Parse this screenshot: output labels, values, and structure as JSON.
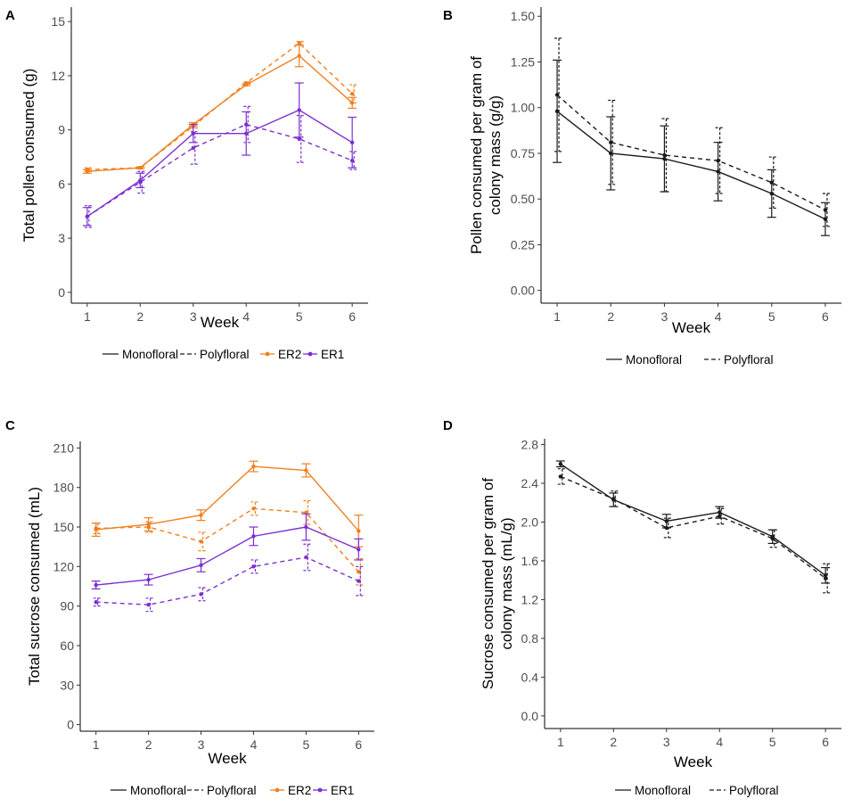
{
  "colors": {
    "ER2": "#f07f1e",
    "ER1": "#7b2fd0",
    "black": "#1a1a1a"
  },
  "chart_data": [
    {
      "panel": "A",
      "type": "line",
      "xlabel": "Week",
      "ylabel": "Total pollen consumed (g)",
      "x": [
        1,
        2,
        3,
        4,
        5,
        6
      ],
      "ylim": [
        -0.6,
        15.8
      ],
      "yticks": [
        0,
        3,
        6,
        9,
        12,
        15
      ],
      "yticklabels": [
        "0",
        "3",
        "6",
        "9",
        "12",
        "15"
      ],
      "grid": false,
      "series": [
        {
          "name": "ER2 Monofloral",
          "group": "ER2",
          "style": "solid",
          "values": [
            6.7,
            6.9,
            9.3,
            11.5,
            13.1,
            10.5
          ],
          "err": [
            0.1,
            0.05,
            0.1,
            0.05,
            0.6,
            0.3
          ]
        },
        {
          "name": "ER2 Polyfloral",
          "group": "ER2",
          "style": "dashed",
          "values": [
            6.8,
            6.9,
            9.2,
            11.6,
            13.8,
            11.0
          ],
          "err": [
            0.1,
            0.05,
            0.1,
            0.05,
            0.1,
            0.5
          ]
        },
        {
          "name": "ER1 Monofloral",
          "group": "ER1",
          "style": "solid",
          "values": [
            4.2,
            6.2,
            8.8,
            8.8,
            10.1,
            8.3
          ],
          "err": [
            0.5,
            0.4,
            0.5,
            1.2,
            1.5,
            1.4
          ]
        },
        {
          "name": "ER1 Polyfloral",
          "group": "ER1",
          "style": "dashed",
          "values": [
            4.2,
            6.1,
            8.0,
            9.3,
            8.5,
            7.3
          ],
          "err": [
            0.6,
            0.6,
            0.9,
            1.0,
            1.3,
            0.5
          ]
        }
      ],
      "legend": [
        {
          "label": "Monofloral",
          "kind": "solid"
        },
        {
          "label": "Polyfloral",
          "kind": "dashed"
        },
        {
          "label": "ER2",
          "kind": "ER2"
        },
        {
          "label": "ER1",
          "kind": "ER1"
        }
      ],
      "legend_position": "bottom"
    },
    {
      "panel": "B",
      "type": "line",
      "xlabel": "Week",
      "ylabel": "Pollen consumed per gram of colony mass (g/g)",
      "x": [
        1,
        2,
        3,
        4,
        5,
        6
      ],
      "ylim": [
        -0.07,
        1.55
      ],
      "yticks": [
        0,
        0.25,
        0.5,
        0.75,
        1.0,
        1.25,
        1.5
      ],
      "yticklabels": [
        "0.00",
        "0.25",
        "0.50",
        "0.75",
        "1.00",
        "1.25",
        "1.50"
      ],
      "grid": false,
      "series": [
        {
          "name": "Monofloral",
          "group": "black",
          "style": "solid",
          "values": [
            0.98,
            0.75,
            0.72,
            0.65,
            0.53,
            0.39
          ],
          "err": [
            0.28,
            0.2,
            0.18,
            0.16,
            0.13,
            0.09
          ]
        },
        {
          "name": "Polyfloral",
          "group": "black",
          "style": "dashed",
          "values": [
            1.07,
            0.81,
            0.74,
            0.71,
            0.59,
            0.44
          ],
          "err": [
            0.31,
            0.23,
            0.2,
            0.18,
            0.14,
            0.09
          ]
        }
      ],
      "legend": [
        {
          "label": "Monofloral",
          "kind": "solid"
        },
        {
          "label": "Polyfloral",
          "kind": "dashed"
        }
      ],
      "legend_position": "bottom"
    },
    {
      "panel": "C",
      "type": "line",
      "xlabel": "Week",
      "ylabel": "Total sucrose consumed (mL)",
      "x": [
        1,
        2,
        3,
        4,
        5,
        6
      ],
      "ylim": [
        -5,
        215
      ],
      "yticks": [
        0,
        30,
        60,
        90,
        120,
        150,
        180,
        210
      ],
      "yticklabels": [
        "0",
        "30",
        "60",
        "90",
        "120",
        "150",
        "180",
        "210"
      ],
      "grid": false,
      "series": [
        {
          "name": "ER2 Monofloral",
          "group": "ER2",
          "style": "solid",
          "values": [
            148,
            152,
            159,
            196,
            193,
            147
          ],
          "err": [
            5,
            5,
            4,
            4,
            5,
            12
          ]
        },
        {
          "name": "ER2 Polyfloral",
          "group": "ER2",
          "style": "dashed",
          "values": [
            149,
            150,
            139,
            164,
            161,
            116
          ],
          "err": [
            4,
            4,
            7,
            5,
            9,
            10
          ]
        },
        {
          "name": "ER1 Monofloral",
          "group": "ER1",
          "style": "solid",
          "values": [
            106,
            110,
            121,
            143,
            150,
            133
          ],
          "err": [
            3,
            4,
            5,
            7,
            10,
            8
          ]
        },
        {
          "name": "ER1 Polyfloral",
          "group": "ER1",
          "style": "dashed",
          "values": [
            93,
            91,
            99,
            120,
            127,
            109
          ],
          "err": [
            3,
            5,
            5,
            5,
            10,
            11
          ]
        }
      ],
      "legend": [
        {
          "label": "Monofloral",
          "kind": "solid"
        },
        {
          "label": "Polyfloral",
          "kind": "dashed"
        },
        {
          "label": "ER2",
          "kind": "ER2"
        },
        {
          "label": "ER1",
          "kind": "ER1"
        }
      ],
      "legend_position": "bottom"
    },
    {
      "panel": "D",
      "type": "line",
      "xlabel": "Week",
      "ylabel": "Sucrose consumed per gram of colony mass (mL/g)",
      "x": [
        1,
        2,
        3,
        4,
        5,
        6
      ],
      "ylim": [
        -0.13,
        2.86
      ],
      "yticks": [
        0,
        0.4,
        0.8,
        1.2,
        1.6,
        2.0,
        2.4,
        2.8
      ],
      "yticklabels": [
        "0.0",
        "0.4",
        "0.8",
        "1.2",
        "1.6",
        "2.0",
        "2.4",
        "2.8"
      ],
      "grid": false,
      "series": [
        {
          "name": "Monofloral",
          "group": "black",
          "style": "solid",
          "values": [
            2.6,
            2.23,
            2.01,
            2.1,
            1.85,
            1.45
          ],
          "err": [
            0.03,
            0.07,
            0.07,
            0.06,
            0.07,
            0.08
          ]
        },
        {
          "name": "Polyfloral",
          "group": "black",
          "style": "dashed",
          "values": [
            2.47,
            2.24,
            1.94,
            2.06,
            1.83,
            1.42
          ],
          "err": [
            0.08,
            0.08,
            0.1,
            0.08,
            0.09,
            0.15
          ]
        }
      ],
      "legend": [
        {
          "label": "Monofloral",
          "kind": "solid"
        },
        {
          "label": "Polyfloral",
          "kind": "dashed"
        }
      ],
      "legend_position": "bottom"
    }
  ]
}
